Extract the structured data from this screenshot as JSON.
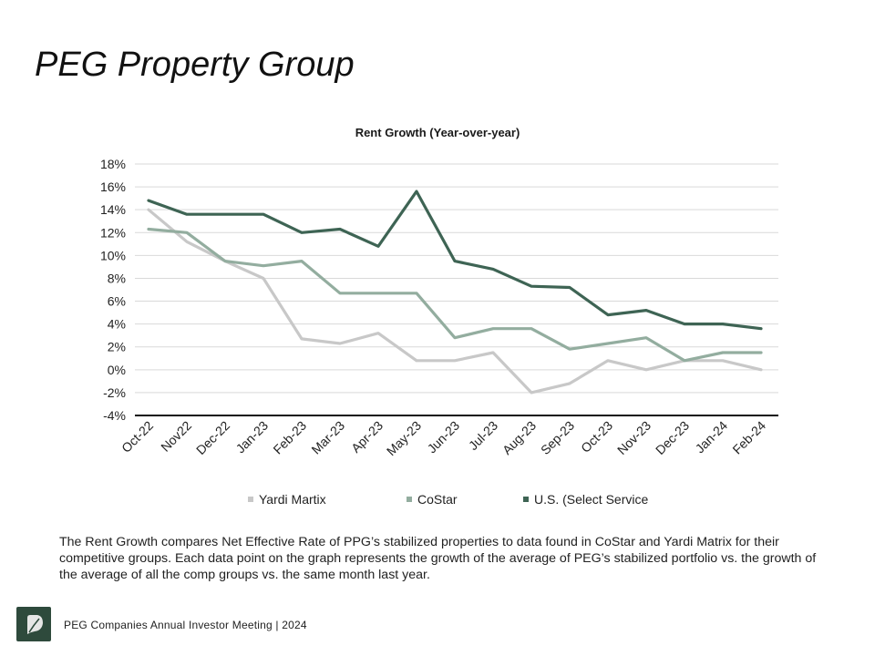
{
  "slide": {
    "title": "PEG Property Group",
    "description": "The Rent Growth compares Net Effective Rate of PPG’s stabilized properties to data found in CoStar and Yardi Matrix for their competitive groups. Each data point on the graph represents the growth of the average of PEG’s stabilized portfolio vs. the growth of the average of all the comp groups vs. the same month last year.",
    "footer_text": "PEG Companies Annual Investor Meeting | 2024",
    "logo_icon": "leaf-logo-icon"
  },
  "colors": {
    "yardi": "#c8c8c8",
    "costar": "#93ad9f",
    "us": "#3e6454",
    "grid": "#d9d9d9",
    "baseline": "#111111",
    "logo_bg": "#2e4a3c"
  },
  "chart_data": {
    "type": "line",
    "title": "Rent Growth (Year-over-year)",
    "xlabel": "",
    "ylabel": "",
    "categories": [
      "Oct-22",
      "Nov22",
      "Dec-22",
      "Jan-23",
      "Feb-23",
      "Mar-23",
      "Apr-23",
      "May-23",
      "Jun-23",
      "Jul-23",
      "Aug-23",
      "Sep-23",
      "Oct-23",
      "Nov-23",
      "Dec-23",
      "Jan-24",
      "Feb-24"
    ],
    "ylim": [
      -4,
      18
    ],
    "yticks": [
      -4,
      -2,
      0,
      2,
      4,
      6,
      8,
      10,
      12,
      14,
      16,
      18
    ],
    "ytick_labels": [
      "-4%",
      "-2%",
      "0%",
      "2%",
      "4%",
      "6%",
      "8%",
      "10%",
      "12%",
      "14%",
      "16%",
      "18%"
    ],
    "grid": true,
    "legend_position": "bottom",
    "series": [
      {
        "name": "Yardi Martix",
        "color_key": "yardi",
        "values": [
          14.0,
          11.2,
          9.5,
          8.0,
          2.7,
          2.3,
          3.2,
          0.8,
          0.8,
          1.5,
          -2.0,
          -1.2,
          0.8,
          0.0,
          0.8,
          0.8,
          0.0
        ]
      },
      {
        "name": "CoStar",
        "color_key": "costar",
        "values": [
          12.3,
          12.0,
          9.5,
          9.1,
          9.5,
          6.7,
          6.7,
          6.7,
          2.8,
          3.6,
          3.6,
          1.8,
          2.3,
          2.8,
          0.8,
          1.5,
          1.5
        ]
      },
      {
        "name": "U.S. (Select Service",
        "color_key": "us",
        "values": [
          14.8,
          13.6,
          13.6,
          13.6,
          12.0,
          12.3,
          10.8,
          15.6,
          9.5,
          8.8,
          7.3,
          7.2,
          4.8,
          5.2,
          4.0,
          4.0,
          3.6
        ]
      }
    ]
  }
}
